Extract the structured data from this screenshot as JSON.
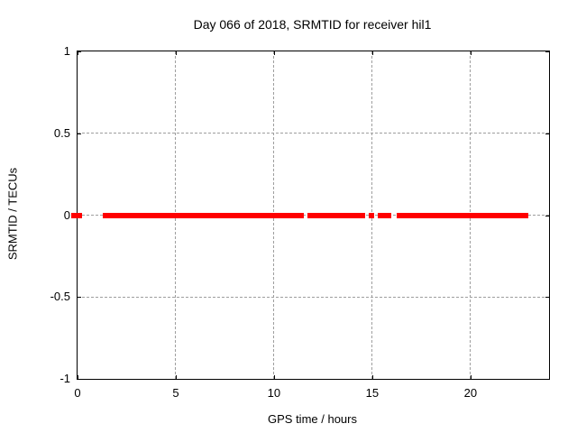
{
  "chart_data": {
    "type": "scatter",
    "title": "Day 066 of 2018, SRMTID for receiver hil1",
    "xlabel": "GPS time / hours",
    "ylabel": "SRMTID / TECUs",
    "xlim": [
      0,
      24
    ],
    "ylim": [
      -1,
      1
    ],
    "xticks": {
      "values": [
        0,
        5,
        10,
        15,
        20
      ],
      "labels": [
        "0",
        "5",
        "10",
        "15",
        "20"
      ]
    },
    "yticks": {
      "values": [
        1,
        0.5,
        0,
        -0.5,
        -1
      ],
      "labels": [
        "1",
        "0.5",
        "0",
        "-0.5",
        "-1"
      ]
    },
    "grid": {
      "x_gridlines": [
        5,
        10,
        15,
        20
      ],
      "y_gridlines": [
        0.5,
        0,
        -0.5
      ],
      "style": "dashed",
      "color": "#9e9e9e"
    },
    "legend": "none",
    "series": [
      {
        "name": "SRMTID",
        "color": "#ff0000",
        "marker": "filled-square",
        "marker_px": 6,
        "y_value": 0,
        "x_segments": [
          [
            -0.3,
            0.25
          ],
          [
            1.3,
            11.5
          ],
          [
            11.68,
            14.65
          ],
          [
            14.82,
            15.12
          ],
          [
            15.26,
            15.97
          ],
          [
            16.25,
            22.95
          ]
        ],
        "note": "all data points lie at SRMTID = 0 TECUs; gaps in coverage near hours 0.3-1.3, 11.5-11.7, 14.65-14.8, 15.1-15.26, 15.97-16.25"
      }
    ]
  },
  "colors": {
    "background": "#ffffff",
    "frame": "#000000",
    "text": "#000000"
  }
}
